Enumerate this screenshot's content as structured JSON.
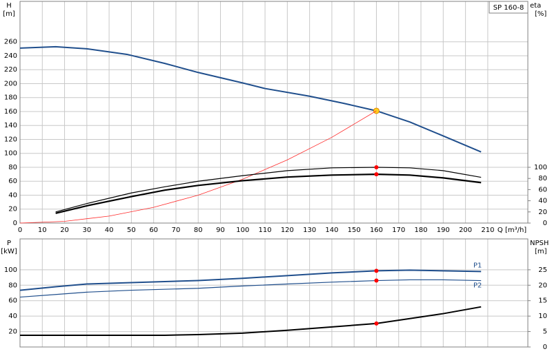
{
  "chart_data": [
    {
      "type": "line",
      "title": "SP 160-8",
      "x_label": "Q [m³/h]",
      "y_label": "H",
      "y_unit": "[m]",
      "y2_label": "eta",
      "y2_unit": "[%]",
      "xlim": [
        0,
        228
      ],
      "xticks": [
        0,
        10,
        20,
        30,
        40,
        50,
        60,
        70,
        80,
        90,
        100,
        110,
        120,
        130,
        140,
        150,
        160,
        170,
        180,
        190,
        200,
        210
      ],
      "ylim": [
        0,
        318
      ],
      "yticks": [
        0,
        20,
        40,
        60,
        80,
        100,
        120,
        140,
        160,
        180,
        200,
        220,
        240,
        260
      ],
      "y2lim": [
        0,
        397.5
      ],
      "y2ticks": [
        0,
        20,
        40,
        60,
        80,
        100
      ],
      "grid": true,
      "operating_point_q": 160,
      "series": [
        {
          "color": "#1f4e8c",
          "width": 2,
          "marker_color": "#ffd21f",
          "x": [
            0,
            16,
            30,
            48,
            65,
            80,
            100,
            110,
            130,
            145,
            160,
            175,
            190,
            207
          ],
          "values": [
            251,
            253,
            250,
            242,
            229,
            216,
            201,
            193,
            182,
            172,
            161,
            145,
            125,
            102
          ]
        },
        {
          "color": "#ff2a2a",
          "width": 0.8,
          "x": [
            0,
            20,
            40,
            60,
            80,
            100,
            120,
            140,
            160
          ],
          "values": [
            0,
            2.5,
            10,
            22.6,
            40,
            63,
            90.6,
            123,
            161
          ]
        },
        {
          "color": "#000000",
          "width": 1.2,
          "axis": "y2",
          "marker_color": "#ff0000",
          "x": [
            16,
            30,
            50,
            65,
            80,
            100,
            120,
            140,
            160,
            175,
            190,
            207
          ],
          "values": [
            20,
            35,
            54,
            65,
            75,
            85,
            94,
            99,
            100,
            99,
            94,
            82
          ]
        },
        {
          "color": "#000000",
          "width": 2.2,
          "axis": "y2",
          "marker_color": "#ff0000",
          "x": [
            16,
            30,
            50,
            65,
            80,
            100,
            120,
            140,
            160,
            175,
            190,
            207
          ],
          "values": [
            17.5,
            31,
            47.5,
            59,
            67.5,
            76,
            82.5,
            86,
            87.5,
            86,
            81,
            72.5
          ]
        }
      ]
    },
    {
      "type": "line",
      "y_label": "P",
      "y_unit": "[kW]",
      "y2_label": "NPSH",
      "y2_unit": "[m]",
      "xlim": [
        0,
        228
      ],
      "xticks": [
        0,
        10,
        20,
        30,
        40,
        50,
        60,
        70,
        80,
        90,
        100,
        110,
        120,
        130,
        140,
        150,
        160,
        170,
        180,
        190,
        200,
        210
      ],
      "ylim": [
        0,
        140
      ],
      "yticks": [
        20,
        40,
        60,
        80,
        100
      ],
      "y2lim": [
        0,
        35
      ],
      "y2ticks": [
        0,
        5,
        10,
        15,
        20,
        25
      ],
      "grid": true,
      "operating_point_q": 160,
      "series": [
        {
          "name": "P1",
          "color": "#1f4e8c",
          "width": 2,
          "marker_color": "#ff0000",
          "x": [
            0,
            16,
            30,
            50,
            80,
            100,
            120,
            140,
            160,
            175,
            190,
            207
          ],
          "values": [
            73.5,
            78,
            81.6,
            83.4,
            86,
            89,
            92.4,
            96,
            98.6,
            99.5,
            98.6,
            97.8
          ]
        },
        {
          "name": "P2",
          "color": "#1f4e8c",
          "width": 1.2,
          "marker_color": "#ff0000",
          "x": [
            0,
            16,
            30,
            50,
            80,
            100,
            120,
            140,
            160,
            175,
            190,
            207
          ],
          "values": [
            64.6,
            68,
            71,
            73.5,
            76,
            79,
            81.6,
            84,
            86,
            87,
            87,
            86
          ]
        },
        {
          "color": "#000000",
          "width": 2,
          "axis": "y2",
          "marker_color": "#ff0000",
          "x": [
            0,
            16,
            50,
            65,
            80,
            100,
            120,
            140,
            160,
            175,
            190,
            207
          ],
          "values": [
            3.8,
            3.8,
            3.8,
            3.8,
            4.0,
            4.5,
            5.4,
            6.5,
            7.6,
            9.2,
            10.8,
            13.0
          ]
        }
      ]
    }
  ]
}
